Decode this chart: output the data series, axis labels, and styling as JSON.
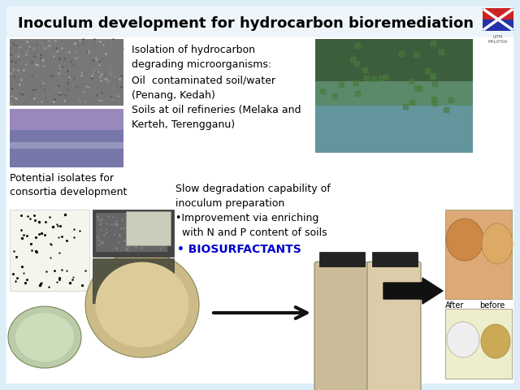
{
  "title": "Inoculum development for hydrocarbon bioremediation",
  "title_fontsize": 13,
  "bg_color": "#ddeef8",
  "slide_bg": "#ddeef8",
  "text_block1": "Isolation of hydrocarbon\ndegrading microorganisms:\nOil  contaminated soil/water\n(Penang, Kedah)\nSoils at oil refineries (Melaka and\nKerteh, Terengganu)",
  "text_block2": "Slow degradation capability of\ninoculum preparation\n•Improvement via enriching\n  with N and P content of soils",
  "text_biosurfactants": "• BIOSURFACTANTS",
  "text_potential": "Potential isolates for\nconsortia development",
  "text_after": "After",
  "text_before": "before",
  "arrow_color": "#111111",
  "biosurfactants_color": "#0000cc",
  "logo_red": "#cc2222",
  "logo_blue": "#2233aa",
  "white": "#ffffff",
  "photo_tl1_color": "#888888",
  "photo_tl2_color": "#7777bb",
  "photo_tr_color": "#4a7a4a",
  "photo_tr_water": "#6699aa",
  "col_plate1": "#f5f5ee",
  "col_sem": "#444444",
  "col_sem2": "#666666",
  "col_agar": "#ccbb88",
  "col_agar2": "#ddcc99",
  "col_green_plate": "#aabb88",
  "col_jar": "#ccbb99",
  "col_jar2": "#ddccaa",
  "col_jar_cap": "#222222",
  "col_right_top_bg": "#ddaa77",
  "col_right_dish1": "#cc8844",
  "col_right_dish2": "#ddaa66",
  "col_right_bot_bg": "#eeeecc",
  "col_right_bot1": "#eeeeee",
  "col_right_bot2": "#ccaa55"
}
